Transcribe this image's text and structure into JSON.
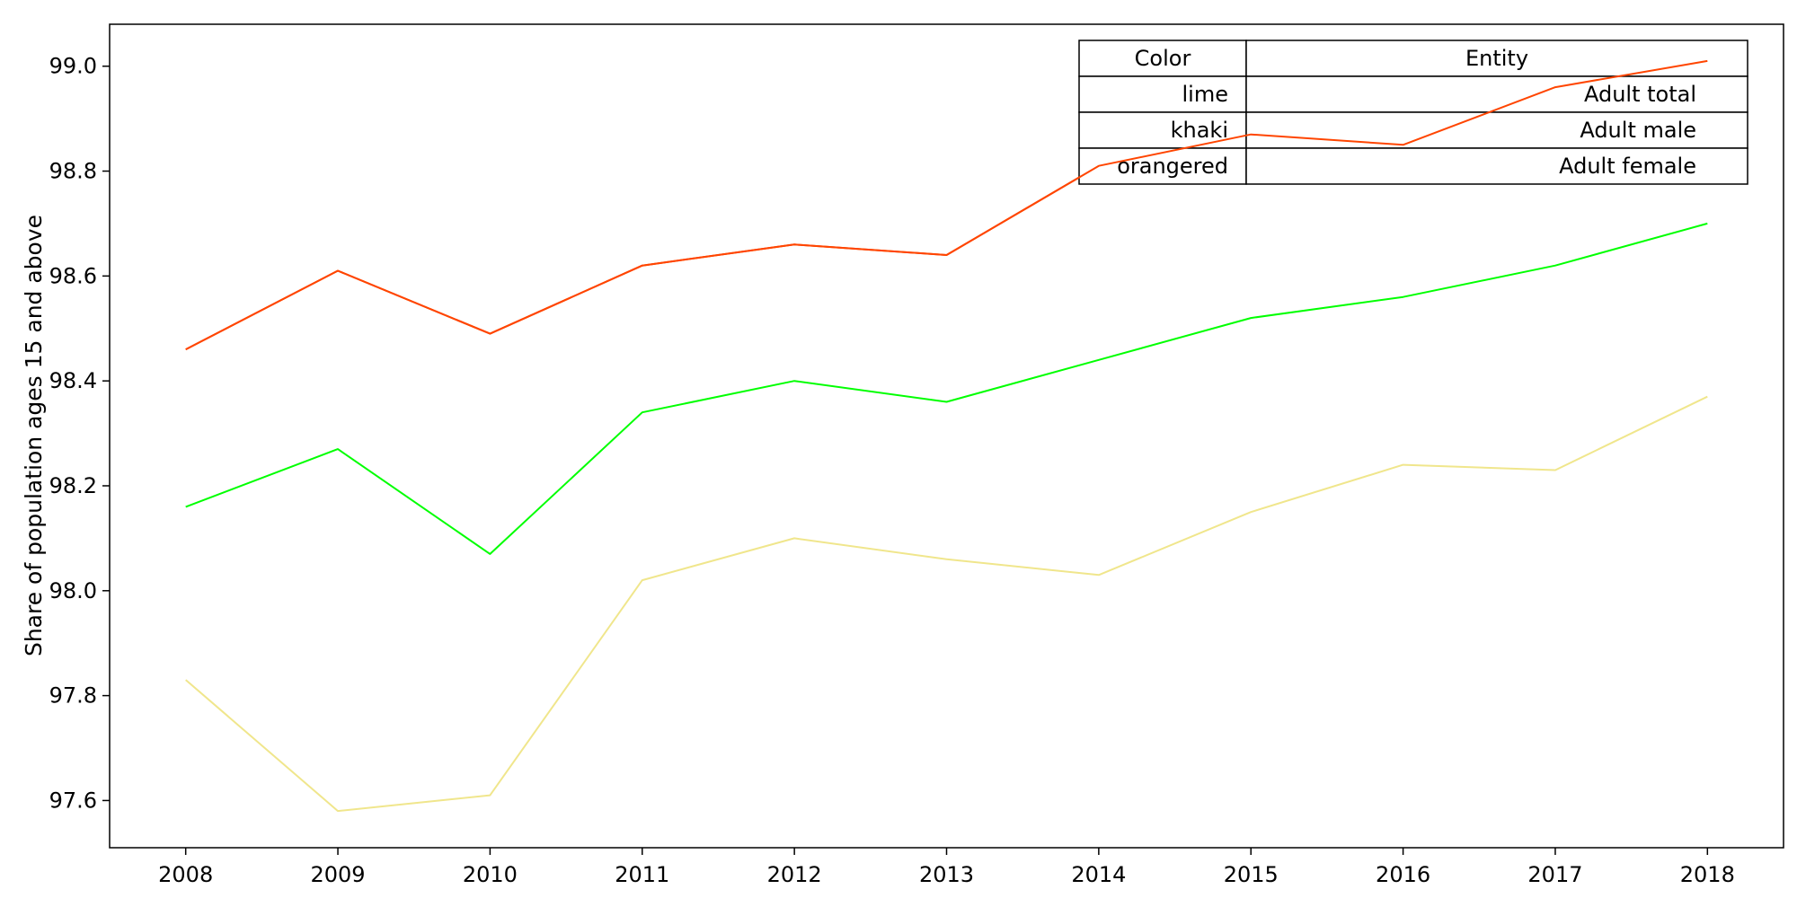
{
  "chart_data": {
    "type": "line",
    "title": "",
    "xlabel": "",
    "ylabel": "Share of population ages 15 and above",
    "x": [
      2008,
      2009,
      2010,
      2011,
      2012,
      2013,
      2014,
      2015,
      2016,
      2017,
      2018
    ],
    "xlim": [
      2007.5,
      2018.5
    ],
    "ylim": [
      97.51,
      99.08
    ],
    "yticks": [
      97.6,
      97.8,
      98.0,
      98.2,
      98.4,
      98.6,
      98.8,
      99.0
    ],
    "grid": false,
    "legend_placement": "top-right",
    "series": [
      {
        "name": "Adult total",
        "color": "#00ff00",
        "values": [
          98.16,
          98.27,
          98.07,
          98.34,
          98.4,
          98.36,
          98.44,
          98.52,
          98.56,
          98.62,
          98.7
        ]
      },
      {
        "name": "Adult male",
        "color": "#f0e68c",
        "values": [
          97.83,
          97.58,
          97.61,
          98.02,
          98.1,
          98.06,
          98.03,
          98.15,
          98.24,
          98.23,
          98.37
        ]
      },
      {
        "name": "Adult female",
        "color": "#ff4500",
        "values": [
          98.46,
          98.61,
          98.49,
          98.62,
          98.66,
          98.64,
          98.81,
          98.87,
          98.85,
          98.96,
          99.01
        ]
      }
    ],
    "legend_table": {
      "headers": [
        "Color",
        "Entity"
      ],
      "rows": [
        {
          "color": "lime",
          "entity": "Adult total"
        },
        {
          "color": "khaki",
          "entity": "Adult male"
        },
        {
          "color": "orangered",
          "entity": "Adult female"
        }
      ]
    }
  }
}
